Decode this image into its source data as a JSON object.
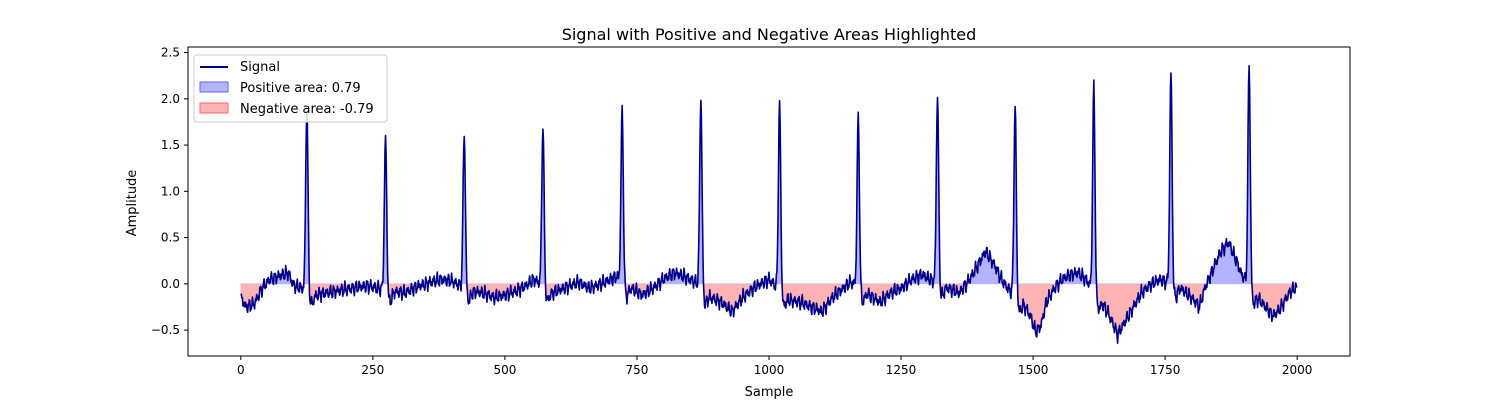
{
  "colors": {
    "signal": "#00008b",
    "positive_fill": "#b3b3ff",
    "positive_edge": "#6666ff",
    "negative_fill": "#ffb3b3",
    "negative_edge": "#ff6666"
  },
  "chart_data": {
    "type": "area",
    "title": "Signal with Positive and Negative Areas Highlighted",
    "xlabel": "Sample",
    "ylabel": "Amplitude",
    "xlim": [
      -100,
      2100
    ],
    "ylim": [
      -0.78,
      2.56
    ],
    "xticks": [
      0,
      250,
      500,
      750,
      1000,
      1250,
      1500,
      1750,
      2000
    ],
    "yticks": [
      -0.5,
      0.0,
      0.5,
      1.0,
      1.5,
      2.0,
      2.5
    ],
    "ytick_labels": [
      "−0.5",
      "0.0",
      "0.5",
      "1.0",
      "1.5",
      "2.0",
      "2.5"
    ],
    "legend_position": "upper-left",
    "legend": {
      "signal": "Signal",
      "positive": "Positive area: 0.79",
      "negative": "Negative area: -0.79"
    },
    "signal": {
      "sample_count": 2000,
      "beats": [
        {
          "x": 125,
          "peak": 2.0
        },
        {
          "x": 274,
          "peak": 1.65
        },
        {
          "x": 423,
          "peak": 1.69
        },
        {
          "x": 572,
          "peak": 1.75
        },
        {
          "x": 722,
          "peak": 1.87
        },
        {
          "x": 871,
          "peak": 2.07
        },
        {
          "x": 1020,
          "peak": 2.02
        },
        {
          "x": 1169,
          "peak": 1.86
        },
        {
          "x": 1319,
          "peak": 2.05
        },
        {
          "x": 1466,
          "peak": 2.07
        },
        {
          "x": 1615,
          "peak": 2.21
        },
        {
          "x": 1761,
          "peak": 2.3
        },
        {
          "x": 1909,
          "peak": 2.4
        }
      ],
      "baseline": [
        [
          0,
          -0.15
        ],
        [
          10,
          -0.25
        ],
        [
          25,
          -0.22
        ],
        [
          40,
          -0.05
        ],
        [
          55,
          0.05
        ],
        [
          70,
          0.08
        ],
        [
          90,
          0.12
        ],
        [
          100,
          -0.02
        ],
        [
          115,
          -0.05
        ],
        [
          140,
          -0.12
        ],
        [
          160,
          -0.1
        ],
        [
          180,
          -0.08
        ],
        [
          200,
          -0.06
        ],
        [
          220,
          -0.04
        ],
        [
          240,
          -0.02
        ],
        [
          260,
          -0.05
        ],
        [
          290,
          -0.08
        ],
        [
          310,
          -0.1
        ],
        [
          330,
          -0.04
        ],
        [
          360,
          0.02
        ],
        [
          380,
          0.05
        ],
        [
          400,
          0.03
        ],
        [
          415,
          -0.02
        ],
        [
          440,
          -0.08
        ],
        [
          460,
          -0.1
        ],
        [
          480,
          -0.15
        ],
        [
          500,
          -0.12
        ],
        [
          520,
          -0.08
        ],
        [
          540,
          -0.02
        ],
        [
          555,
          0.05
        ],
        [
          590,
          -0.1
        ],
        [
          610,
          -0.05
        ],
        [
          640,
          0.02
        ],
        [
          660,
          -0.05
        ],
        [
          690,
          0.02
        ],
        [
          710,
          0.08
        ],
        [
          740,
          -0.05
        ],
        [
          760,
          -0.12
        ],
        [
          780,
          -0.05
        ],
        [
          800,
          0.05
        ],
        [
          820,
          0.12
        ],
        [
          840,
          0.08
        ],
        [
          860,
          0.02
        ],
        [
          890,
          -0.15
        ],
        [
          910,
          -0.2
        ],
        [
          930,
          -0.3
        ],
        [
          950,
          -0.15
        ],
        [
          970,
          -0.05
        ],
        [
          990,
          0.02
        ],
        [
          1000,
          0.05
        ],
        [
          1040,
          -0.18
        ],
        [
          1060,
          -0.2
        ],
        [
          1080,
          -0.25
        ],
        [
          1100,
          -0.3
        ],
        [
          1120,
          -0.15
        ],
        [
          1140,
          -0.05
        ],
        [
          1155,
          0.02
        ],
        [
          1190,
          -0.12
        ],
        [
          1210,
          -0.2
        ],
        [
          1230,
          -0.1
        ],
        [
          1250,
          -0.05
        ],
        [
          1270,
          0.05
        ],
        [
          1290,
          0.1
        ],
        [
          1305,
          0.05
        ],
        [
          1340,
          -0.05
        ],
        [
          1360,
          -0.1
        ],
        [
          1380,
          0.05
        ],
        [
          1395,
          0.2
        ],
        [
          1410,
          0.35
        ],
        [
          1425,
          0.22
        ],
        [
          1440,
          0.05
        ],
        [
          1452,
          -0.05
        ],
        [
          1480,
          -0.2
        ],
        [
          1495,
          -0.35
        ],
        [
          1505,
          -0.52
        ],
        [
          1515,
          -0.45
        ],
        [
          1525,
          -0.2
        ],
        [
          1540,
          -0.05
        ],
        [
          1555,
          0.05
        ],
        [
          1570,
          0.1
        ],
        [
          1585,
          0.12
        ],
        [
          1600,
          0.05
        ],
        [
          1630,
          -0.2
        ],
        [
          1645,
          -0.35
        ],
        [
          1660,
          -0.55
        ],
        [
          1675,
          -0.4
        ],
        [
          1690,
          -0.25
        ],
        [
          1705,
          -0.1
        ],
        [
          1720,
          -0.02
        ],
        [
          1740,
          0.05
        ],
        [
          1780,
          -0.05
        ],
        [
          1800,
          -0.15
        ],
        [
          1815,
          -0.25
        ],
        [
          1825,
          -0.05
        ],
        [
          1840,
          0.15
        ],
        [
          1855,
          0.35
        ],
        [
          1870,
          0.45
        ],
        [
          1885,
          0.25
        ],
        [
          1895,
          0.1
        ],
        [
          1925,
          -0.15
        ],
        [
          1940,
          -0.25
        ],
        [
          1955,
          -0.35
        ],
        [
          1970,
          -0.25
        ],
        [
          1985,
          -0.1
        ],
        [
          1995,
          -0.05
        ],
        [
          1999,
          -0.05
        ]
      ]
    }
  }
}
